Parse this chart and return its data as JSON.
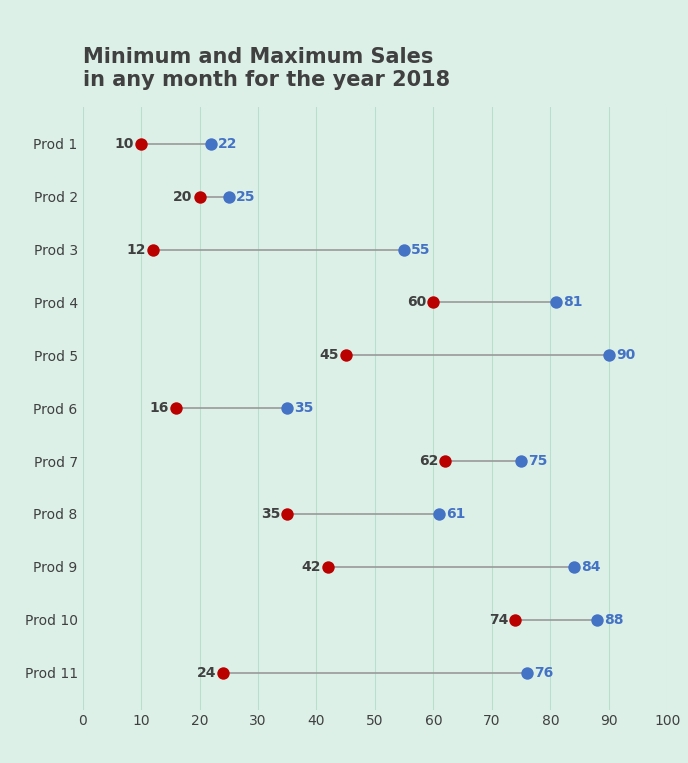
{
  "title": "Minimum and Maximum Sales\nin any month for the year 2018",
  "title_fontsize": 15,
  "title_fontweight": "bold",
  "title_color": "#404040",
  "background_color": "#ddf0e8",
  "categories": [
    "Prod 1",
    "Prod 2",
    "Prod 3",
    "Prod 4",
    "Prod 5",
    "Prod 6",
    "Prod 7",
    "Prod 8",
    "Prod 9",
    "Prod 10",
    "Prod 11"
  ],
  "min_values": [
    10,
    20,
    12,
    60,
    45,
    16,
    62,
    35,
    42,
    74,
    24
  ],
  "max_values": [
    22,
    25,
    55,
    81,
    90,
    35,
    75,
    61,
    84,
    88,
    76
  ],
  "min_color": "#bb0000",
  "max_color": "#4472c4",
  "line_color": "#999999",
  "dot_size": 80,
  "xlim": [
    0,
    100
  ],
  "xticks": [
    0,
    10,
    20,
    30,
    40,
    50,
    60,
    70,
    80,
    90,
    100
  ],
  "grid_color": "#b8dece",
  "label_fontsize": 10,
  "label_fontweight": "bold",
  "category_fontsize": 10,
  "category_color": "#404040",
  "min_label_color": "#404040",
  "max_label_color": "#4472c4"
}
